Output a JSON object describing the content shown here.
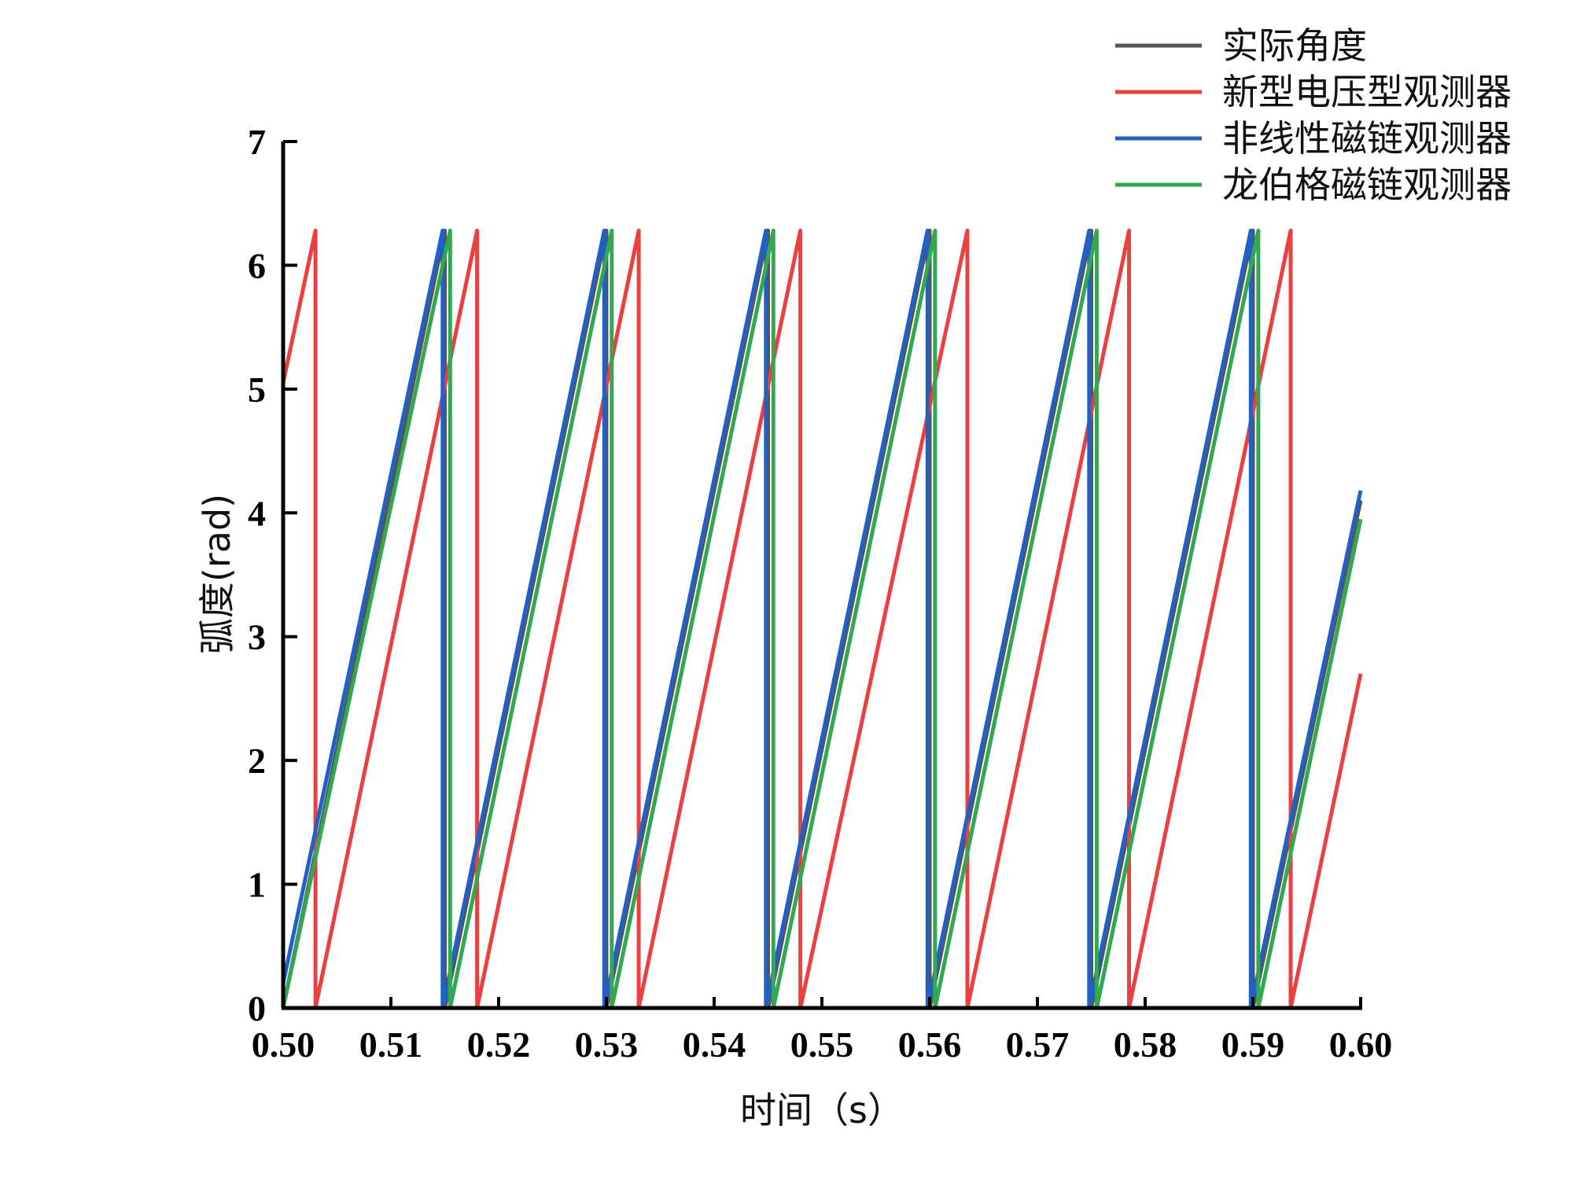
{
  "chart_data": {
    "type": "line",
    "xlabel": "时间（s）",
    "ylabel": "弧度(rad)",
    "xlim": [
      0.5,
      0.6
    ],
    "ylim": [
      0,
      7
    ],
    "xticks": [
      "0.50",
      "0.51",
      "0.52",
      "0.53",
      "0.54",
      "0.55",
      "0.56",
      "0.57",
      "0.58",
      "0.59",
      "0.60"
    ],
    "yticks": [
      "0",
      "1",
      "2",
      "3",
      "4",
      "5",
      "6",
      "7"
    ],
    "grid": false,
    "legend_position": "top-right",
    "series": [
      {
        "name": "实际角度",
        "color": "#555555",
        "x": [
          0.5,
          0.515,
          0.515,
          0.53,
          0.53,
          0.545,
          0.545,
          0.56,
          0.56,
          0.575,
          0.575,
          0.59,
          0.59,
          0.6
        ],
        "y": [
          0,
          6.28,
          0,
          6.28,
          0,
          6.28,
          0,
          6.28,
          0,
          6.28,
          0,
          6.28,
          0,
          4.1
        ]
      },
      {
        "name": "新型电压型观测器",
        "color": "#ec4040",
        "x": [
          0.5,
          0.503,
          0.503,
          0.518,
          0.518,
          0.533,
          0.533,
          0.548,
          0.548,
          0.5635,
          0.5635,
          0.5785,
          0.5785,
          0.5935,
          0.5935,
          0.6
        ],
        "y": [
          5.05,
          6.28,
          0,
          6.28,
          0,
          6.28,
          0,
          6.28,
          0,
          6.28,
          0,
          6.28,
          0,
          6.28,
          0,
          2.7
        ]
      },
      {
        "name": "非线性磁链观测器",
        "color": "#2060c8",
        "x": [
          0.5,
          0.5148,
          0.5148,
          0.5298,
          0.5298,
          0.5448,
          0.5448,
          0.5598,
          0.5598,
          0.5748,
          0.5748,
          0.5898,
          0.5898,
          0.6
        ],
        "y": [
          0.2,
          6.28,
          0,
          6.28,
          0,
          6.28,
          0,
          6.28,
          0,
          6.28,
          0,
          6.28,
          0,
          4.18
        ]
      },
      {
        "name": "龙伯格磁链观测器",
        "color": "#33a853",
        "x": [
          0.5,
          0.5155,
          0.5155,
          0.5305,
          0.5305,
          0.5455,
          0.5455,
          0.5605,
          0.5605,
          0.5755,
          0.5755,
          0.5905,
          0.5905,
          0.6
        ],
        "y": [
          0,
          6.28,
          0,
          6.28,
          0,
          6.28,
          0,
          6.28,
          0,
          6.28,
          0,
          6.28,
          0,
          3.95
        ]
      }
    ]
  }
}
